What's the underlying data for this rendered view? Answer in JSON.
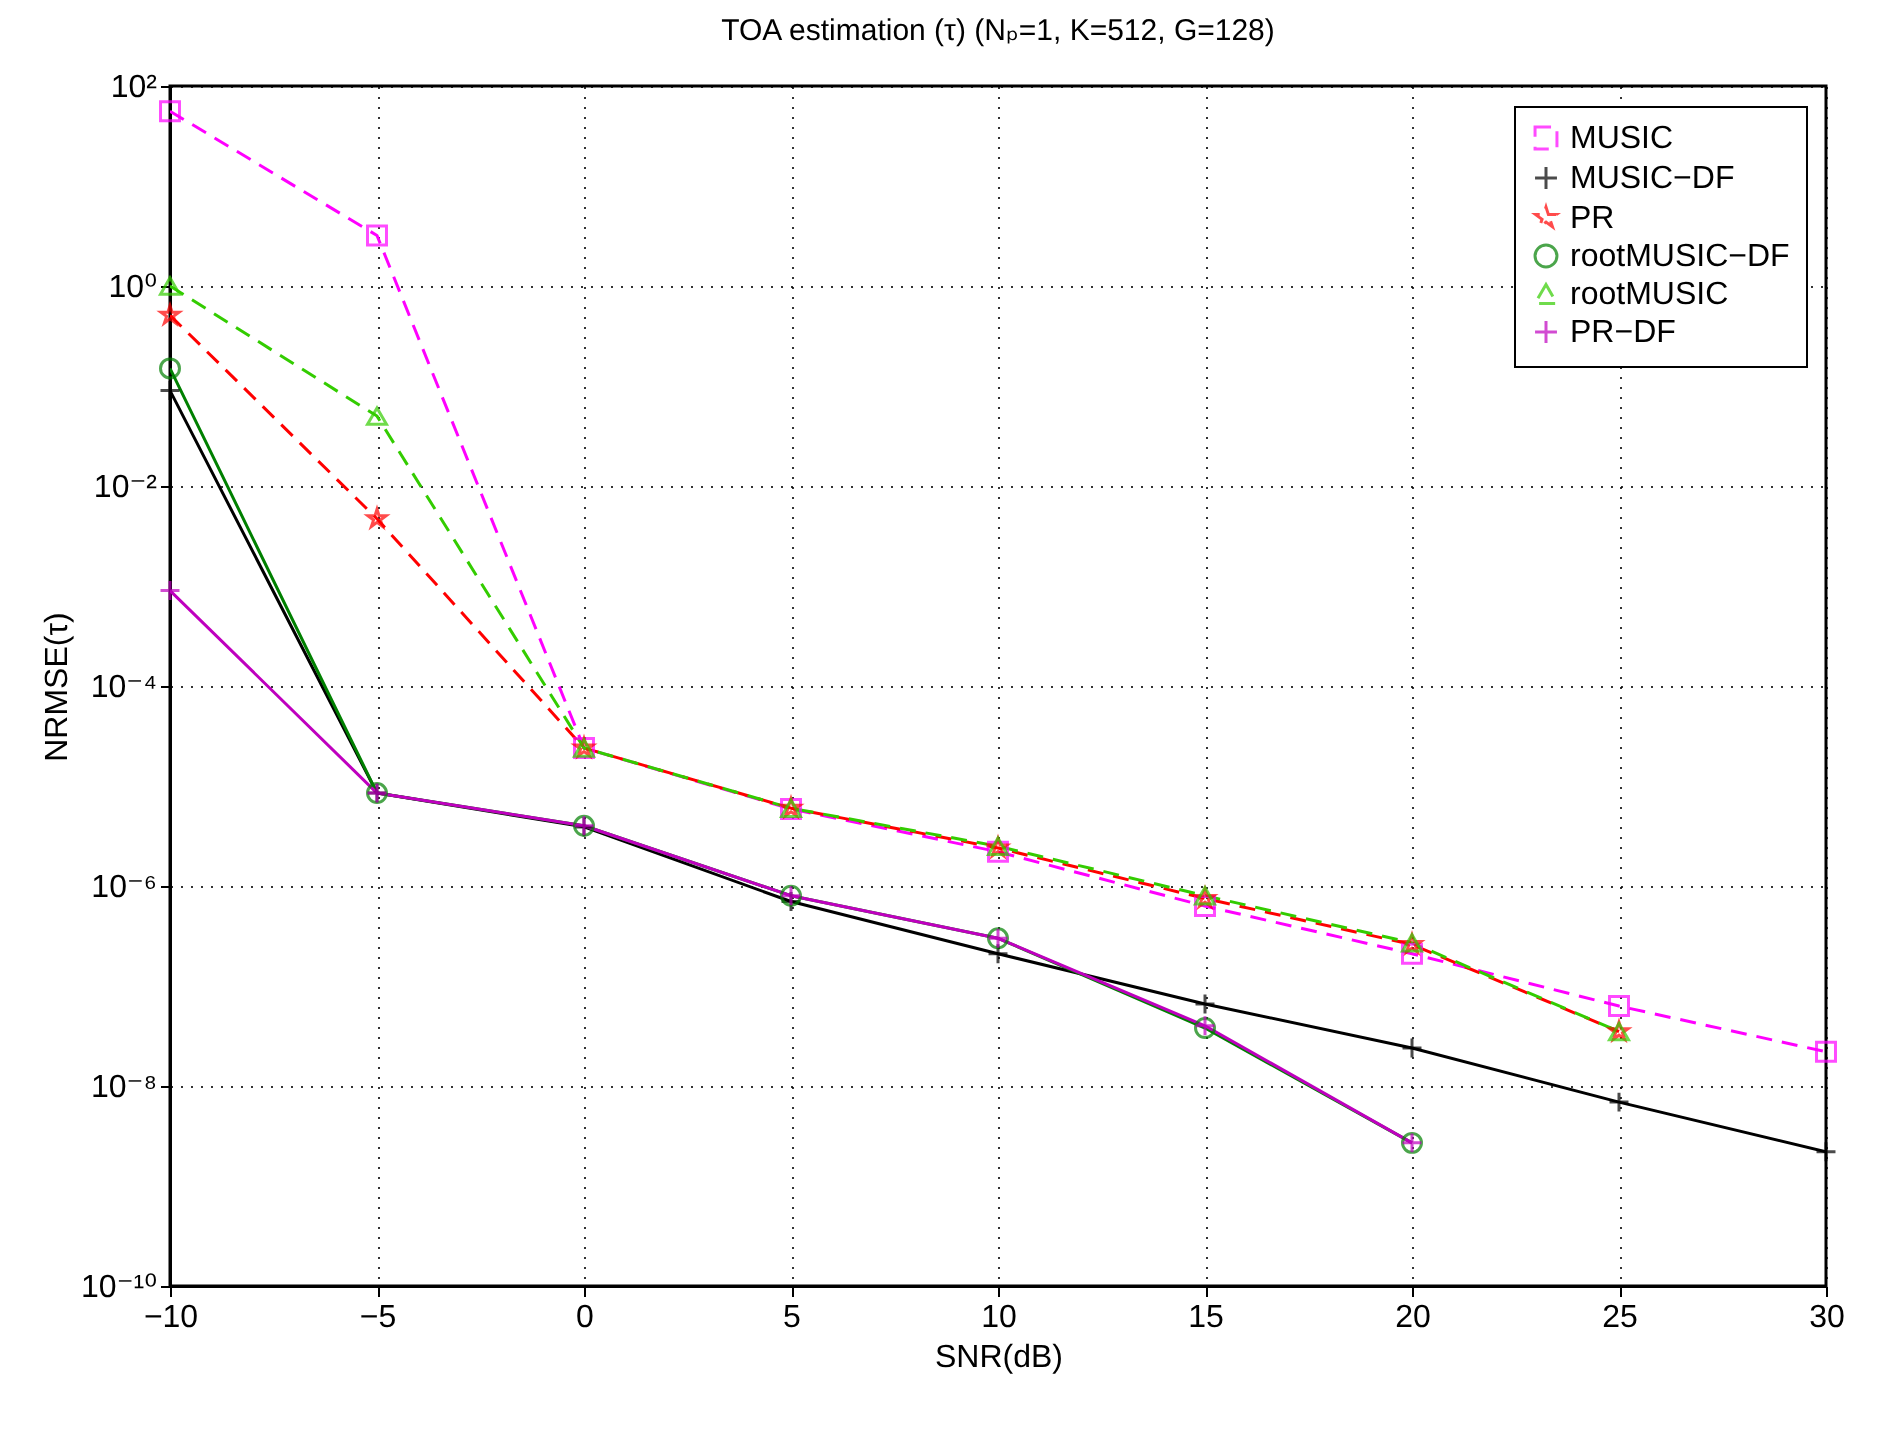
{
  "chart_data": {
    "type": "line",
    "title": "TOA estimation (τ) (Nₚ=1, K=512, G=128)",
    "xlabel": "SNR(dB)",
    "ylabel": "NRMSE(τ)",
    "x": [
      -10,
      -5,
      0,
      5,
      10,
      15,
      20,
      25,
      30
    ],
    "series": [
      {
        "name": "MUSIC",
        "color": "#ff00ff",
        "line_style": "dashed",
        "marker": "square",
        "values": [
          56,
          3.2,
          2.4e-05,
          5.9e-06,
          2.2e-06,
          6.3e-07,
          2.1e-07,
          6.3e-08,
          2.2e-08
        ]
      },
      {
        "name": "MUSIC−DF",
        "color": "#000000",
        "line_style": "solid",
        "marker": "cross",
        "values": [
          0.09,
          8.5e-06,
          3.9e-06,
          7e-07,
          2.1e-07,
          6.6e-08,
          2.4e-08,
          6.9e-09,
          2.2e-09
        ]
      },
      {
        "name": "PR",
        "color": "#ff0000",
        "line_style": "dashed",
        "marker": "star",
        "values": [
          0.51,
          0.0047,
          2.4e-05,
          6e-06,
          2.4e-06,
          7.5e-07,
          2.6e-07,
          3.5e-08,
          null
        ]
      },
      {
        "name": "rootMUSIC−DF",
        "color": "#008000",
        "line_style": "solid",
        "marker": "circle",
        "values": [
          0.15,
          8.5e-06,
          4e-06,
          8e-07,
          3e-07,
          3.8e-08,
          2.7e-09,
          null,
          null
        ]
      },
      {
        "name": "rootMUSIC",
        "color": "#33cc00",
        "line_style": "dashed",
        "marker": "triangle",
        "values": [
          1.0,
          0.05,
          2.4e-05,
          6e-06,
          2.5e-06,
          8e-07,
          2.7e-07,
          3.5e-08,
          null
        ]
      },
      {
        "name": "PR−DF",
        "color": "#bf00bf",
        "line_style": "solid",
        "marker": "cross",
        "values": [
          0.0009,
          8.5e-06,
          4e-06,
          8e-07,
          3e-07,
          4e-08,
          2.7e-09,
          null,
          null
        ]
      }
    ],
    "log": true,
    "grid": true,
    "legend": "top right",
    "xlim": [
      -10,
      30
    ],
    "xticks": [
      {
        "value": -10,
        "label": "−10"
      },
      {
        "value": -5,
        "label": "−5"
      },
      0,
      5,
      10,
      15,
      20,
      25,
      30
    ],
    "ylim": [
      1e-10,
      100
    ],
    "yticks": [
      {
        "value": 1e-10,
        "label": "10⁻¹⁰"
      },
      {
        "value": 1e-08,
        "label": "10⁻⁸"
      },
      {
        "value": 1e-06,
        "label": "10⁻⁶"
      },
      {
        "value": 0.0001,
        "label": "10⁻⁴"
      },
      {
        "value": 0.01,
        "label": "10⁻²"
      },
      {
        "value": 1,
        "label": "10⁰"
      },
      {
        "value": 100,
        "label": "10²"
      }
    ]
  }
}
